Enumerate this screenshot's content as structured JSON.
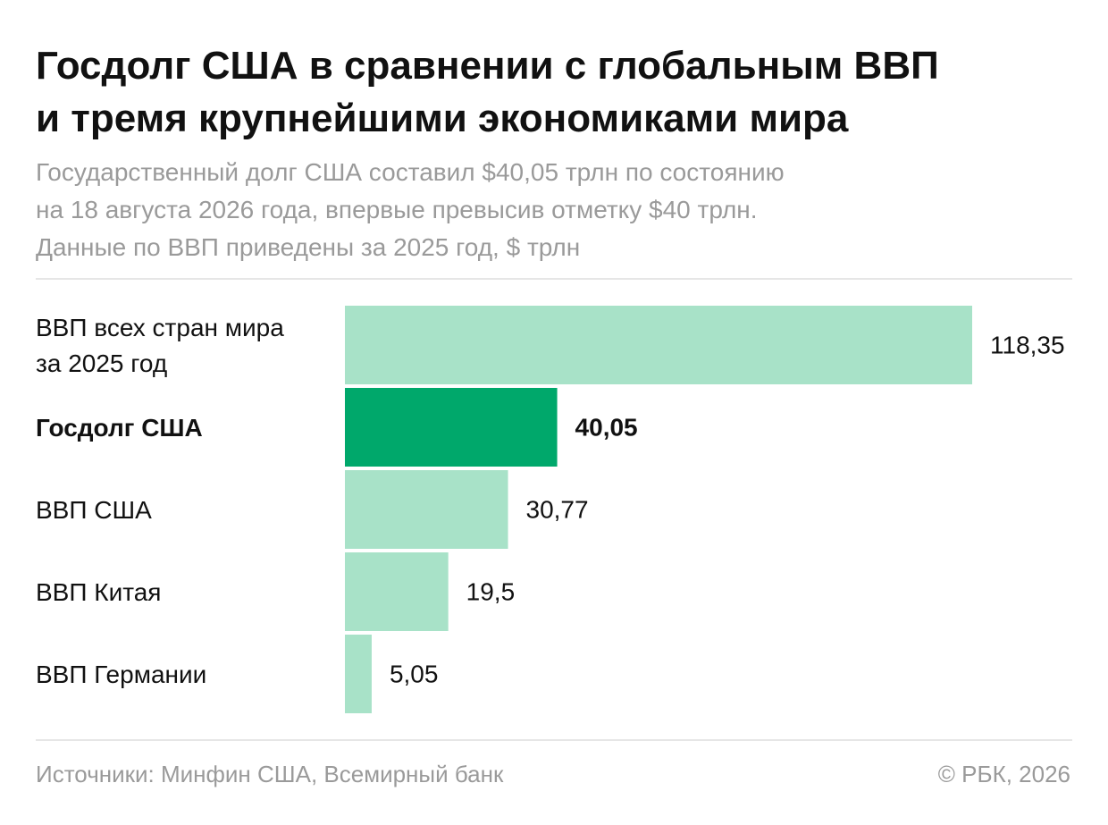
{
  "title_line1": "Госдолг США в сравнении с глобальным ВВП",
  "title_line2": "и тремя крупнейшими экономиками мира",
  "subtitle_line1": "Государственный долг США составил $40,05 трлн по состоянию",
  "subtitle_line2": "на 18 августа 2026 года, впервые превысив отметку $40 трлн.",
  "subtitle_line3": "Данные по ВВП приведены за 2025 год, $ трлн",
  "footer": {
    "source": "Источники: Минфин США, Всемирный банк",
    "copyright": "© РБК, 2026"
  },
  "colors": {
    "bar": "#a8e2c8",
    "highlight": "#00a86b",
    "text": "#111111",
    "muted": "#9a9a9a"
  },
  "chart_data": {
    "type": "bar",
    "orientation": "horizontal",
    "categories": [
      [
        "ВВП всех стран мира",
        "за 2025 год"
      ],
      [
        "Госдолг США"
      ],
      [
        "ВВП США"
      ],
      [
        "ВВП Китая"
      ],
      [
        "ВВП Германии"
      ]
    ],
    "values": [
      118.35,
      40.05,
      30.77,
      19.5,
      5.05
    ],
    "value_labels": [
      "118,35",
      "40,05",
      "30,77",
      "19,5",
      "5,05"
    ],
    "highlight_index": 1,
    "xlim": [
      0,
      118.35
    ]
  }
}
